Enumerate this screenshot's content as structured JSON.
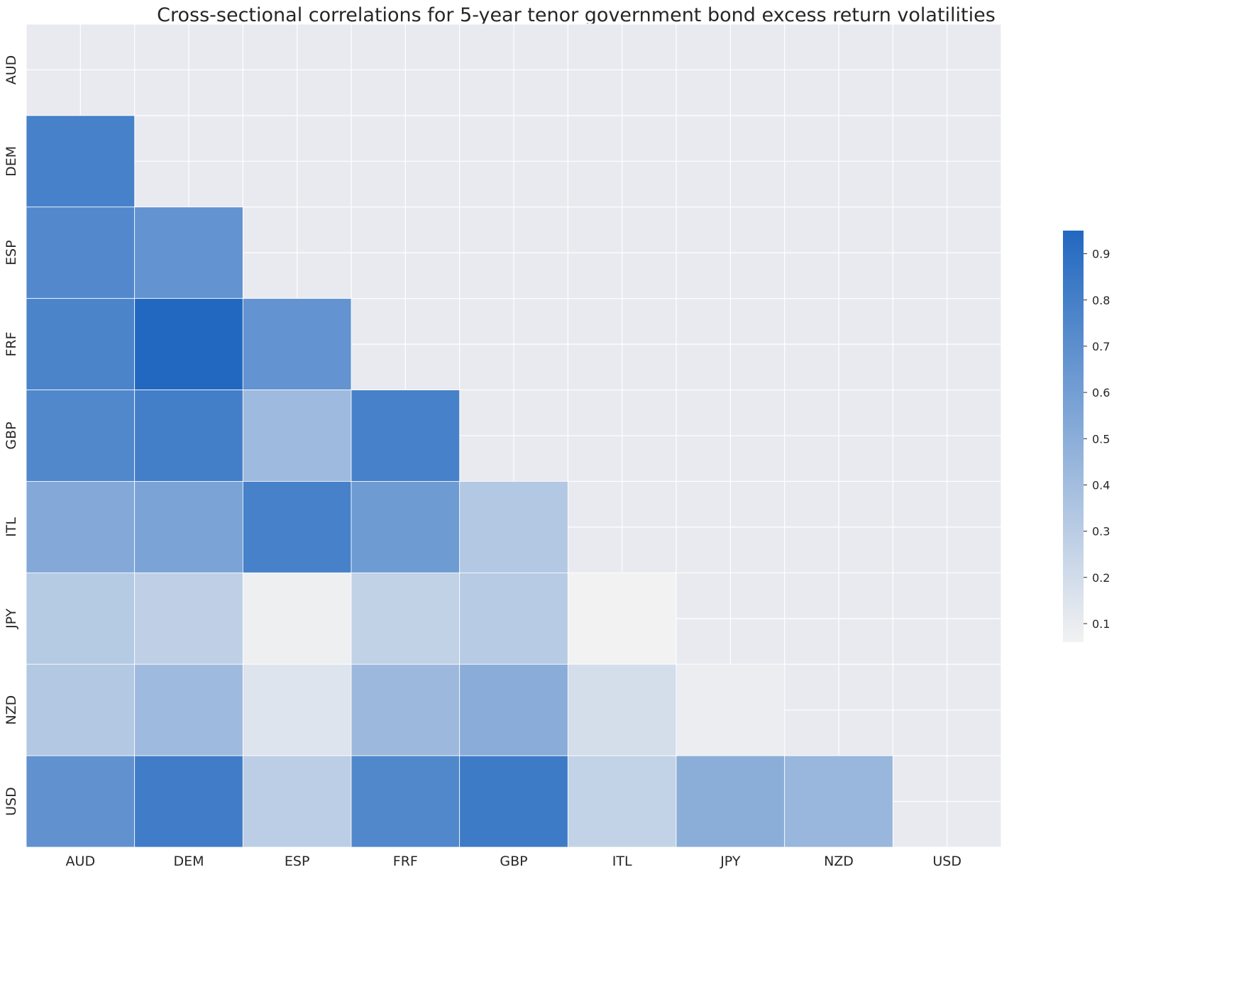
{
  "chart_data": {
    "type": "heatmap",
    "title": "Cross-sectional correlations for 5-year tenor government bond excess return volatilities",
    "xlabel": "",
    "ylabel": "",
    "labels": [
      "AUD",
      "DEM",
      "ESP",
      "FRF",
      "GBP",
      "ITL",
      "JPY",
      "NZD",
      "USD"
    ],
    "matrix_lower": [
      [],
      [
        0.79
      ],
      [
        0.74,
        0.67
      ],
      [
        0.77,
        0.95,
        0.67
      ],
      [
        0.75,
        0.81,
        0.42,
        0.79
      ],
      [
        0.53,
        0.57,
        0.79,
        0.62,
        0.33
      ],
      [
        0.32,
        0.28,
        0.08,
        0.27,
        0.31,
        0.06
      ],
      [
        0.33,
        0.42,
        0.15,
        0.43,
        0.51,
        0.19,
        0.09
      ],
      [
        0.68,
        0.82,
        0.29,
        0.75,
        0.83,
        0.26,
        0.5,
        0.44
      ]
    ],
    "mask": "upper triangle and diagonal",
    "colorbar": {
      "range": [
        0.06,
        0.95
      ],
      "ticks": [
        "0.1",
        "0.2",
        "0.3",
        "0.4",
        "0.5",
        "0.6",
        "0.7",
        "0.8",
        "0.9"
      ],
      "low_color": "#f2f2f2",
      "high_color": "#2268c0"
    },
    "background_color": "#e9e9f0",
    "grid": true
  }
}
